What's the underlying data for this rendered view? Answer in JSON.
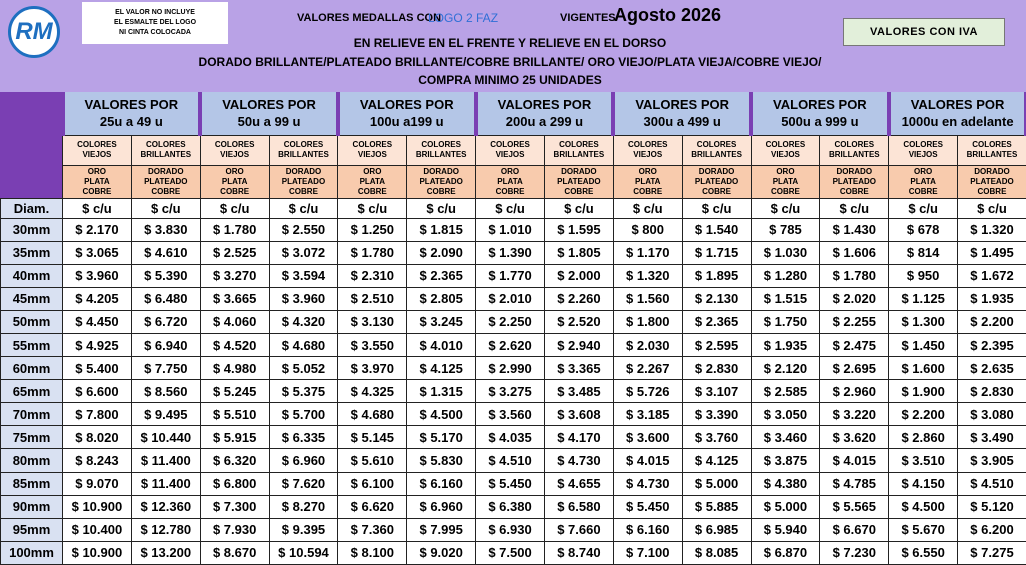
{
  "logo": "RM",
  "notice": [
    "EL VALOR NO INCLUYE",
    "EL ESMALTE DEL LOGO",
    "NI CINTA COLOCADA"
  ],
  "header": {
    "prefix": "VALORES MEDALLAS CON",
    "product": "LOGO 2 FAZ",
    "valid": "VIGENTES",
    "period": "Agosto 2026",
    "tax_note": "VALORES CON IVA"
  },
  "subtitle": [
    "EN RELIEVE EN EL FRENTE Y RELIEVE EN EL DORSO",
    "DORADO BRILLANTE/PLATEADO BRILLANTE/COBRE BRILLANTE/ ORO VIEJO/PLATA VIEJA/COBRE VIEJO/",
    "COMPRA MINIMO 25 UNIDADES"
  ],
  "table": {
    "groups": [
      {
        "title": "VALORES POR",
        "range": "25u a 49 u"
      },
      {
        "title": "VALORES POR",
        "range": "50u a 99 u"
      },
      {
        "title": "VALORES POR",
        "range": "100u a199 u"
      },
      {
        "title": "VALORES POR",
        "range": "200u a 299 u"
      },
      {
        "title": "VALORES POR",
        "range": "300u a 499 u"
      },
      {
        "title": "VALORES POR",
        "range": "500u a 999 u"
      },
      {
        "title": "VALORES POR",
        "range": "1000u en adelante"
      }
    ],
    "finish_headers": [
      "COLORES VIEJOS",
      "COLORES BRILLANTES"
    ],
    "color_headers": [
      "ORO PLATA COBRE",
      "DORADO PLATEADO COBRE"
    ],
    "unit_header": "$ c/u",
    "diam_label": "Diam.",
    "rows": [
      {
        "diam": "30mm",
        "prices": [
          "$ 2.170",
          "$ 3.830",
          "$ 1.780",
          "$ 2.550",
          "$ 1.250",
          "$ 1.815",
          "$ 1.010",
          "$ 1.595",
          "$ 800",
          "$ 1.540",
          "$ 785",
          "$ 1.430",
          "$ 678",
          "$ 1.320"
        ]
      },
      {
        "diam": "35mm",
        "prices": [
          "$ 3.065",
          "$ 4.610",
          "$ 2.525",
          "$ 3.072",
          "$ 1.780",
          "$ 2.090",
          "$ 1.390",
          "$ 1.805",
          "$ 1.170",
          "$ 1.715",
          "$ 1.030",
          "$ 1.606",
          "$ 814",
          "$ 1.495"
        ]
      },
      {
        "diam": "40mm",
        "prices": [
          "$ 3.960",
          "$ 5.390",
          "$ 3.270",
          "$ 3.594",
          "$ 2.310",
          "$ 2.365",
          "$ 1.770",
          "$ 2.000",
          "$ 1.320",
          "$ 1.895",
          "$ 1.280",
          "$ 1.780",
          "$ 950",
          "$ 1.672"
        ]
      },
      {
        "diam": "45mm",
        "prices": [
          "$ 4.205",
          "$ 6.480",
          "$ 3.665",
          "$ 3.960",
          "$ 2.510",
          "$ 2.805",
          "$ 2.010",
          "$ 2.260",
          "$ 1.560",
          "$ 2.130",
          "$ 1.515",
          "$ 2.020",
          "$ 1.125",
          "$ 1.935"
        ]
      },
      {
        "diam": "50mm",
        "prices": [
          "$ 4.450",
          "$ 6.720",
          "$ 4.060",
          "$ 4.320",
          "$ 3.130",
          "$ 3.245",
          "$ 2.250",
          "$ 2.520",
          "$ 1.800",
          "$ 2.365",
          "$ 1.750",
          "$ 2.255",
          "$ 1.300",
          "$ 2.200"
        ]
      },
      {
        "diam": "55mm",
        "prices": [
          "$ 4.925",
          "$ 6.940",
          "$ 4.520",
          "$ 4.680",
          "$ 3.550",
          "$ 4.010",
          "$ 2.620",
          "$ 2.940",
          "$ 2.030",
          "$ 2.595",
          "$ 1.935",
          "$ 2.475",
          "$ 1.450",
          "$ 2.395"
        ]
      },
      {
        "diam": "60mm",
        "prices": [
          "$ 5.400",
          "$ 7.750",
          "$ 4.980",
          "$ 5.052",
          "$ 3.970",
          "$ 4.125",
          "$ 2.990",
          "$ 3.365",
          "$ 2.267",
          "$ 2.830",
          "$ 2.120",
          "$ 2.695",
          "$ 1.600",
          "$ 2.635"
        ]
      },
      {
        "diam": "65mm",
        "prices": [
          "$ 6.600",
          "$ 8.560",
          "$ 5.245",
          "$ 5.375",
          "$ 4.325",
          "$ 1.315",
          "$ 3.275",
          "$ 3.485",
          "$ 5.726",
          "$ 3.107",
          "$ 2.585",
          "$ 2.960",
          "$ 1.900",
          "$ 2.830"
        ]
      },
      {
        "diam": "70mm",
        "prices": [
          "$ 7.800",
          "$ 9.495",
          "$ 5.510",
          "$ 5.700",
          "$ 4.680",
          "$ 4.500",
          "$ 3.560",
          "$ 3.608",
          "$ 3.185",
          "$ 3.390",
          "$ 3.050",
          "$ 3.220",
          "$ 2.200",
          "$ 3.080"
        ]
      },
      {
        "diam": "75mm",
        "prices": [
          "$ 8.020",
          "$ 10.440",
          "$ 5.915",
          "$ 6.335",
          "$ 5.145",
          "$ 5.170",
          "$ 4.035",
          "$ 4.170",
          "$ 3.600",
          "$ 3.760",
          "$ 3.460",
          "$ 3.620",
          "$ 2.860",
          "$ 3.490"
        ]
      },
      {
        "diam": "80mm",
        "prices": [
          "$ 8.243",
          "$ 11.400",
          "$ 6.320",
          "$ 6.960",
          "$ 5.610",
          "$ 5.830",
          "$ 4.510",
          "$ 4.730",
          "$ 4.015",
          "$ 4.125",
          "$ 3.875",
          "$ 4.015",
          "$ 3.510",
          "$ 3.905"
        ]
      },
      {
        "diam": "85mm",
        "prices": [
          "$ 9.070",
          "$ 11.400",
          "$ 6.800",
          "$ 7.620",
          "$ 6.100",
          "$ 6.160",
          "$ 5.450",
          "$ 4.655",
          "$ 4.730",
          "$ 5.000",
          "$ 4.380",
          "$ 4.785",
          "$ 4.150",
          "$ 4.510"
        ]
      },
      {
        "diam": "90mm",
        "prices": [
          "$ 10.900",
          "$ 12.360",
          "$ 7.300",
          "$ 8.270",
          "$ 6.620",
          "$ 6.960",
          "$ 6.380",
          "$ 6.580",
          "$ 5.450",
          "$ 5.885",
          "$ 5.000",
          "$ 5.565",
          "$ 4.500",
          "$ 5.120"
        ]
      },
      {
        "diam": "95mm",
        "prices": [
          "$ 10.400",
          "$ 12.780",
          "$ 7.930",
          "$ 9.395",
          "$ 7.360",
          "$ 7.995",
          "$ 6.930",
          "$ 7.660",
          "$ 6.160",
          "$ 6.985",
          "$ 5.940",
          "$ 6.670",
          "$ 5.670",
          "$ 6.200"
        ]
      },
      {
        "diam": "100mm",
        "prices": [
          "$ 10.900",
          "$ 13.200",
          "$ 8.670",
          "$ 10.594",
          "$ 8.100",
          "$ 9.020",
          "$ 7.500",
          "$ 8.740",
          "$ 7.100",
          "$ 8.085",
          "$ 6.870",
          "$ 7.230",
          "$ 6.550",
          "$ 7.275"
        ]
      }
    ]
  }
}
